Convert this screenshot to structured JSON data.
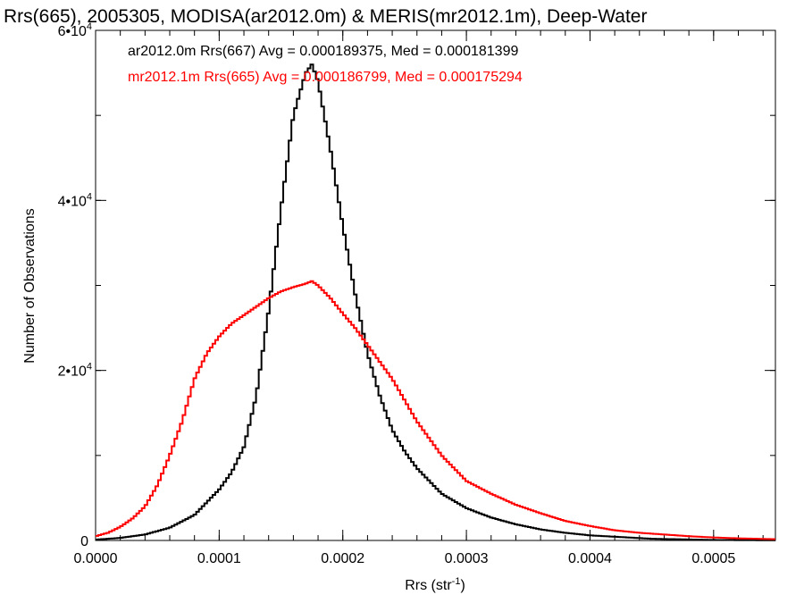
{
  "chart_data": {
    "type": "line",
    "title": "Rrs(665), 2005305, MODISA(ar2012.0m) & MERIS(mr2012.1m), Deep-Water",
    "xlabel": "Rrs (str",
    "xlabel_sup": "-1",
    "xlabel_tail": ")",
    "ylabel": "Number of Observations",
    "xlim": [
      0.0,
      0.00055
    ],
    "ylim": [
      0,
      60000
    ],
    "grid": false,
    "x_ticks": [
      {
        "value": 0.0,
        "label": "0.0000"
      },
      {
        "value": 0.0001,
        "label": "0.0001"
      },
      {
        "value": 0.0002,
        "label": "0.0002"
      },
      {
        "value": 0.0003,
        "label": "0.0003"
      },
      {
        "value": 0.0004,
        "label": "0.0004"
      },
      {
        "value": 0.0005,
        "label": "0.0005"
      }
    ],
    "y_ticks": [
      {
        "value": 0,
        "label": "0",
        "sup": ""
      },
      {
        "value": 20000,
        "label": "2•10",
        "sup": "4"
      },
      {
        "value": 40000,
        "label": "4•10",
        "sup": "4"
      },
      {
        "value": 60000,
        "label": "6•10",
        "sup": "4"
      }
    ],
    "legend_position": "top-left",
    "series": [
      {
        "name": "ar2012.0m Rrs(667) Avg = 0.000189375, Med = 0.000181399",
        "color": "#000000",
        "x": [
          0.0,
          2e-05,
          4e-05,
          6e-05,
          8e-05,
          0.0001,
          0.00011,
          0.00012,
          0.00013,
          0.00014,
          0.00015,
          0.00016,
          0.00017,
          0.000175,
          0.00018,
          0.00019,
          0.0002,
          0.00021,
          0.00022,
          0.00023,
          0.00024,
          0.00025,
          0.00026,
          0.00027,
          0.00028,
          0.0003,
          0.00032,
          0.00034,
          0.00036,
          0.00038,
          0.0004,
          0.00045,
          0.0005,
          0.00055
        ],
        "y": [
          100,
          300,
          700,
          1500,
          3000,
          6000,
          8000,
          11000,
          17000,
          27000,
          39000,
          50000,
          55000,
          56000,
          54000,
          46000,
          37000,
          29000,
          22000,
          17000,
          13000,
          10500,
          8500,
          7000,
          5500,
          3800,
          2700,
          1900,
          1300,
          900,
          600,
          200,
          60,
          20
        ]
      },
      {
        "name": "mr2012.1m Rrs(665) Avg = 0.000186799, Med = 0.000175294",
        "color": "#ff0000",
        "x": [
          0.0,
          1e-05,
          2e-05,
          3e-05,
          4e-05,
          5e-05,
          6e-05,
          7e-05,
          8e-05,
          9e-05,
          0.0001,
          0.00011,
          0.00012,
          0.00013,
          0.00014,
          0.00015,
          0.00016,
          0.00017,
          0.000175,
          0.00018,
          0.00019,
          0.0002,
          0.00021,
          0.00022,
          0.00023,
          0.00024,
          0.00025,
          0.00026,
          0.00027,
          0.00028,
          0.00029,
          0.0003,
          0.00032,
          0.00034,
          0.00036,
          0.00038,
          0.0004,
          0.00042,
          0.00044,
          0.00046,
          0.00048,
          0.0005,
          0.00052,
          0.00055
        ],
        "y": [
          500,
          900,
          1600,
          2600,
          4000,
          6500,
          10000,
          14000,
          19000,
          22000,
          24000,
          25500,
          26500,
          27500,
          28500,
          29300,
          29800,
          30200,
          30500,
          30000,
          28500,
          26700,
          25000,
          23000,
          21000,
          19000,
          16500,
          14000,
          12000,
          10000,
          8500,
          7000,
          5500,
          4200,
          3200,
          2300,
          1700,
          1200,
          900,
          700,
          500,
          350,
          250,
          150
        ]
      }
    ]
  }
}
